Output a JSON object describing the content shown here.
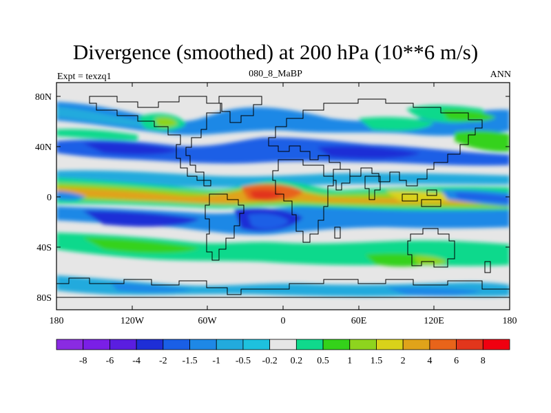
{
  "header": {
    "title": "Divergence (smoothed) at 200 hPa (10**6 m/s)",
    "left_label": "Expt = texzq1",
    "center_label": "080_8_MaBP",
    "right_label": "ANN"
  },
  "map": {
    "projection": "cylindrical-equidistant",
    "background_color": "#e6e6e6",
    "lat_ticks": [
      "80N",
      "40N",
      "0",
      "40S",
      "80S"
    ],
    "lon_ticks": [
      "180",
      "120W",
      "60W",
      "0",
      "60E",
      "120E",
      "180"
    ]
  },
  "colorbar": {
    "labels": [
      "-8",
      "-6",
      "-4",
      "-2",
      "-1.5",
      "-1",
      "-0.5",
      "-0.2",
      "0.2",
      "0.5",
      "1",
      "1.5",
      "2",
      "4",
      "6",
      "8"
    ],
    "colors": [
      "#8a2be2",
      "#7a1fe6",
      "#5a1ee0",
      "#1e2ed6",
      "#1a5fe6",
      "#1e88e6",
      "#22aadd",
      "#1ec1de",
      "#e6e6e6",
      "#10d98c",
      "#34d21a",
      "#8ed41e",
      "#d9d21a",
      "#e0a31a",
      "#e8641a",
      "#e2361c",
      "#f00010"
    ]
  }
}
